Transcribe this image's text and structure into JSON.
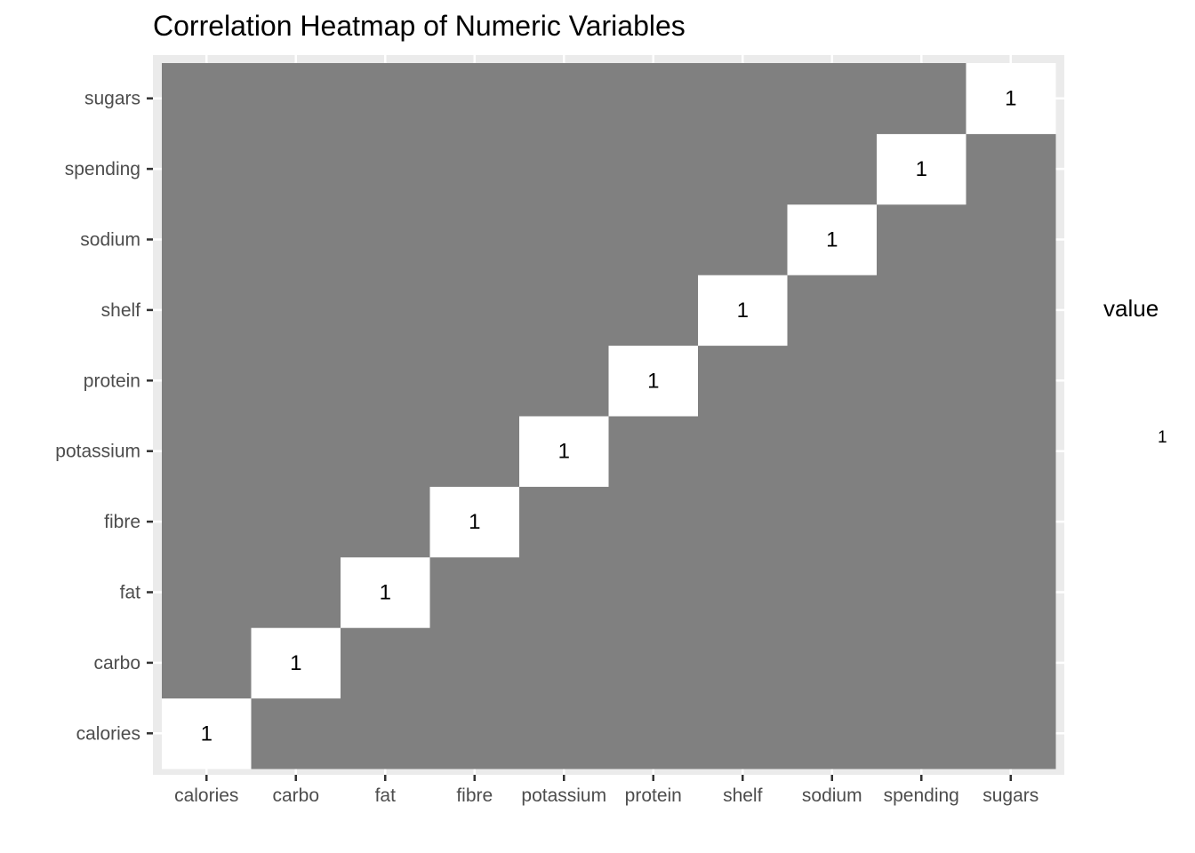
{
  "chart_data": {
    "type": "heatmap",
    "title": "Correlation Heatmap of Numeric Variables",
    "xlabel": "",
    "ylabel": "",
    "x": [
      "calories",
      "carbo",
      "fat",
      "fibre",
      "potassium",
      "protein",
      "shelf",
      "sodium",
      "spending",
      "sugars"
    ],
    "y": [
      "calories",
      "carbo",
      "fat",
      "fibre",
      "potassium",
      "protein",
      "shelf",
      "sodium",
      "spending",
      "sugars"
    ],
    "cells": [
      {
        "x": "calories",
        "y": "calories",
        "value": 1
      },
      {
        "x": "carbo",
        "y": "carbo",
        "value": 1
      },
      {
        "x": "fat",
        "y": "fat",
        "value": 1
      },
      {
        "x": "fibre",
        "y": "fibre",
        "value": 1
      },
      {
        "x": "potassium",
        "y": "potassium",
        "value": 1
      },
      {
        "x": "protein",
        "y": "protein",
        "value": 1
      },
      {
        "x": "shelf",
        "y": "shelf",
        "value": 1
      },
      {
        "x": "sodium",
        "y": "sodium",
        "value": 1
      },
      {
        "x": "spending",
        "y": "spending",
        "value": 1
      },
      {
        "x": "sugars",
        "y": "sugars",
        "value": 1
      }
    ],
    "missing_value_color": "#808080",
    "value_color": "#ffffff",
    "panel_background": "#ebebeb",
    "legend": {
      "title": "value",
      "labels": [
        "1"
      ],
      "position": "right"
    },
    "grid": true
  }
}
